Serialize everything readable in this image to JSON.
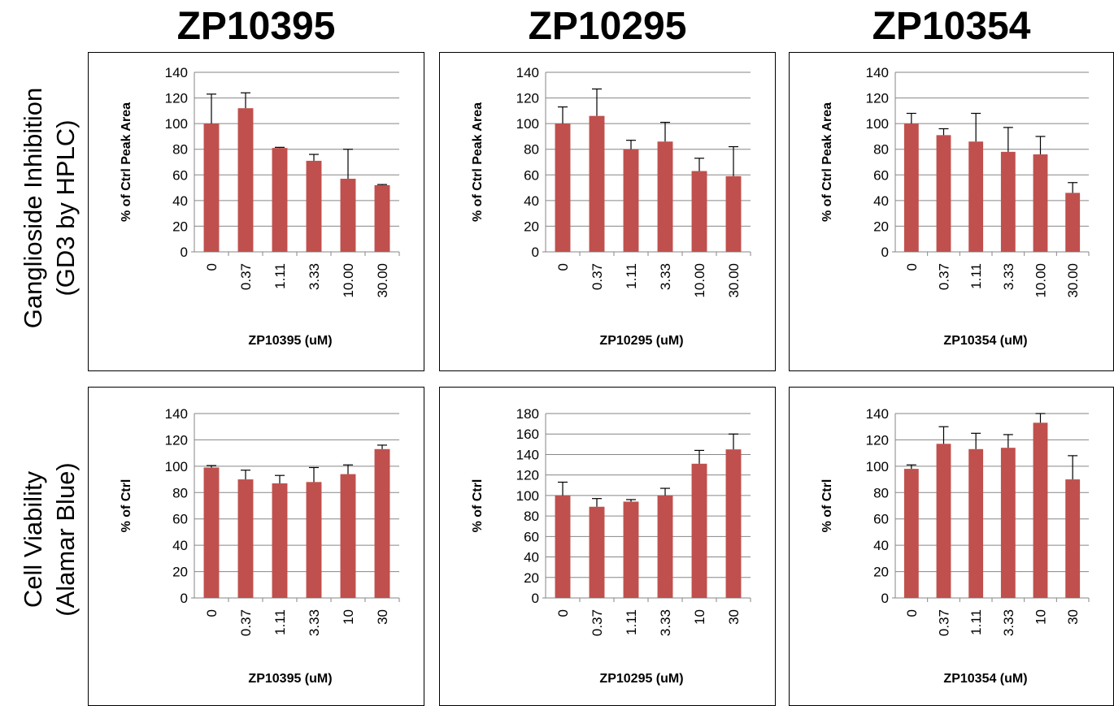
{
  "column_titles": [
    "ZP10395",
    "ZP10295",
    "ZP10354"
  ],
  "row_labels": [
    {
      "line1": "Ganglioside Inhibition",
      "line2": "(GD3 by HPLC)"
    },
    {
      "line1": "Cell Viability",
      "line2": "(Alamar Blue)"
    }
  ],
  "bar_color": "#c0504d",
  "chart_data": [
    {
      "type": "bar",
      "categories": [
        "0",
        "0.37",
        "1.11",
        "3.33",
        "10.00",
        "30.00"
      ],
      "values": [
        100,
        112,
        81,
        71,
        57,
        52
      ],
      "error": [
        23,
        12,
        0.5,
        5,
        23,
        0.5
      ],
      "xlabel": "ZP10395 (uM)",
      "ylabel": "% of Ctrl Peak Area",
      "ylim": [
        0,
        140
      ],
      "ystep": 20,
      "grid": true
    },
    {
      "type": "bar",
      "categories": [
        "0",
        "0.37",
        "1.11",
        "3.33",
        "10.00",
        "30.00"
      ],
      "values": [
        100,
        106,
        80,
        86,
        63,
        59
      ],
      "error": [
        13,
        21,
        7,
        15,
        10,
        23
      ],
      "xlabel": "ZP10295 (uM)",
      "ylabel": "% of Ctrl Peak Area",
      "ylim": [
        0,
        140
      ],
      "ystep": 20,
      "grid": true
    },
    {
      "type": "bar",
      "categories": [
        "0",
        "0.37",
        "1.11",
        "3.33",
        "10.00",
        "30.00"
      ],
      "values": [
        100,
        91,
        86,
        78,
        76,
        46
      ],
      "error": [
        8,
        5,
        22,
        19,
        14,
        8
      ],
      "xlabel": "ZP10354 (uM)",
      "ylabel": "% of Ctrl Peak Area",
      "ylim": [
        0,
        140
      ],
      "ystep": 20,
      "grid": true
    },
    {
      "type": "bar",
      "categories": [
        "0",
        "0.37",
        "1.11",
        "3.33",
        "10",
        "30"
      ],
      "values": [
        99,
        90,
        87,
        88,
        94,
        113
      ],
      "error": [
        1.5,
        7,
        6,
        11,
        7,
        3
      ],
      "xlabel": "ZP10395 (uM)",
      "ylabel": "% of Ctrl",
      "ylim": [
        0,
        140
      ],
      "ystep": 20,
      "grid": true
    },
    {
      "type": "bar",
      "categories": [
        "0",
        "0.37",
        "1.11",
        "3.33",
        "10",
        "30"
      ],
      "values": [
        100,
        89,
        94,
        100,
        131,
        145
      ],
      "error": [
        13,
        8,
        2,
        7,
        13,
        15
      ],
      "xlabel": "ZP10295 (uM)",
      "ylabel": "% of Ctrl",
      "ylim": [
        0,
        180
      ],
      "ystep": 20,
      "grid": true
    },
    {
      "type": "bar",
      "categories": [
        "0",
        "0.37",
        "1.11",
        "3.33",
        "10",
        "30"
      ],
      "values": [
        98,
        117,
        113,
        114,
        133,
        90
      ],
      "error": [
        3,
        13,
        12,
        10,
        7,
        18
      ],
      "xlabel": "ZP10354 (uM)",
      "ylabel": "% of Ctrl",
      "ylim": [
        0,
        140
      ],
      "ystep": 20,
      "grid": true
    }
  ]
}
